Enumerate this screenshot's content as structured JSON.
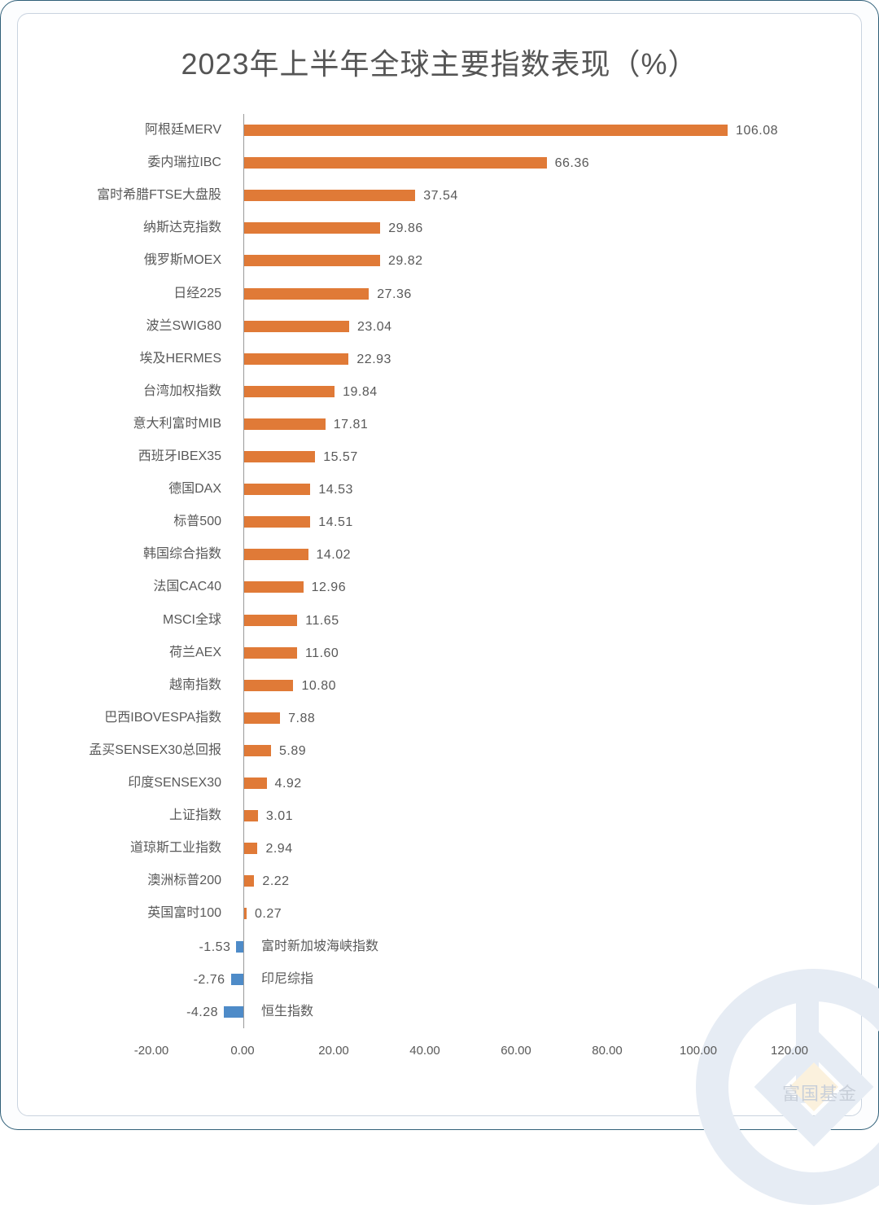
{
  "header": {
    "title": "2023年上半年全球主要指数表现（%）"
  },
  "watermark": {
    "text": "富国基金"
  },
  "colors": {
    "positive": "#e07a37",
    "negative": "#4e8bc8",
    "text": "#595959",
    "frame": "#2f5f78"
  },
  "chart_data": {
    "type": "bar",
    "orientation": "horizontal",
    "title": "2023年上半年全球主要指数表现（%）",
    "xlabel": "",
    "ylabel": "",
    "xlim": [
      -20,
      120
    ],
    "x_ticks": [
      "-20.00",
      "0.00",
      "20.00",
      "40.00",
      "60.00",
      "80.00",
      "100.00",
      "120.00"
    ],
    "grid": false,
    "legend": null,
    "categories": [
      "阿根廷MERV",
      "委内瑞拉IBC",
      "富时希腊FTSE大盘股",
      "纳斯达克指数",
      "俄罗斯MOEX",
      "日经225",
      "波兰SWIG80",
      "埃及HERMES",
      "台湾加权指数",
      "意大利富时MIB",
      "西班牙IBEX35",
      "德国DAX",
      "标普500",
      "韩国综合指数",
      "法国CAC40",
      "MSCI全球",
      "荷兰AEX",
      "越南指数",
      "巴西IBOVESPA指数",
      "孟买SENSEX30总回报",
      "印度SENSEX30",
      "上证指数",
      "道琼斯工业指数",
      "澳洲标普200",
      "英国富时100",
      "富时新加坡海峡指数",
      "印尼综指",
      "恒生指数"
    ],
    "values": [
      106.08,
      66.36,
      37.54,
      29.86,
      29.82,
      27.36,
      23.04,
      22.93,
      19.84,
      17.81,
      15.57,
      14.53,
      14.51,
      14.02,
      12.96,
      11.65,
      11.6,
      10.8,
      7.88,
      5.89,
      4.92,
      3.01,
      2.94,
      2.22,
      0.27,
      -1.53,
      -2.76,
      -4.28
    ],
    "value_labels": [
      "106.08",
      "66.36",
      "37.54",
      "29.86",
      "29.82",
      "27.36",
      "23.04",
      "22.93",
      "19.84",
      "17.81",
      "15.57",
      "14.53",
      "14.51",
      "14.02",
      "12.96",
      "11.65",
      "11.60",
      "10.80",
      "7.88",
      "5.89",
      "4.92",
      "3.01",
      "2.94",
      "2.22",
      "0.27",
      "-1.53",
      "-2.76",
      "-4.28"
    ]
  }
}
